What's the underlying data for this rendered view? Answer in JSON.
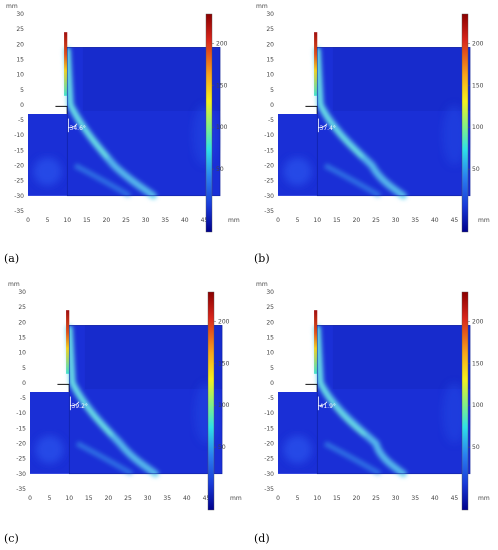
{
  "panels": [
    {
      "label": "(a)",
      "angle": "34.6°",
      "x_ticks": [
        "0",
        "5",
        "10",
        "15",
        "20",
        "25",
        "30",
        "35",
        "40",
        "45"
      ],
      "y_ticks": [
        "30",
        "25",
        "20",
        "15",
        "10",
        "5",
        "0",
        "-5",
        "-10",
        "-15",
        "-20",
        "-25",
        "-30",
        "-35"
      ],
      "axis_unit": "mm",
      "colorbar_ticks": [
        "200",
        "150",
        "100",
        "50"
      ]
    },
    {
      "label": "(b)",
      "angle": "37.4°",
      "x_ticks": [
        "0",
        "5",
        "10",
        "15",
        "20",
        "25",
        "30",
        "35",
        "40",
        "45"
      ],
      "y_ticks": [
        "30",
        "25",
        "20",
        "15",
        "10",
        "5",
        "0",
        "-5",
        "-10",
        "-15",
        "-20",
        "-25",
        "-30",
        "-35"
      ],
      "axis_unit": "mm",
      "colorbar_ticks": [
        "200",
        "150",
        "100",
        "50"
      ]
    },
    {
      "label": "(c)",
      "angle": "39.2°",
      "x_ticks": [
        "0",
        "5",
        "10",
        "15",
        "20",
        "25",
        "30",
        "35",
        "40",
        "45"
      ],
      "y_ticks": [
        "30",
        "25",
        "20",
        "15",
        "10",
        "5",
        "0",
        "-5",
        "-10",
        "-15",
        "-20",
        "-25",
        "-30",
        "-35"
      ],
      "axis_unit": "mm",
      "colorbar_ticks": [
        "200",
        "150",
        "100",
        "50"
      ]
    },
    {
      "label": "(d)",
      "angle": "41.9°",
      "x_ticks": [
        "0",
        "5",
        "10",
        "15",
        "20",
        "25",
        "30",
        "35",
        "40",
        "45"
      ],
      "y_ticks": [
        "30",
        "25",
        "20",
        "15",
        "10",
        "5",
        "0",
        "-5",
        "-10",
        "-15",
        "-20",
        "-25",
        "-30",
        "-35"
      ],
      "axis_unit": "mm",
      "colorbar_ticks": [
        "200",
        "150",
        "100",
        "50"
      ]
    }
  ],
  "colors": {
    "field_base": "#1a2fd6",
    "jet_core": "#6fe8e0",
    "colorbar_top": "#8b0000",
    "colorbar_bottom": "#00008b"
  }
}
